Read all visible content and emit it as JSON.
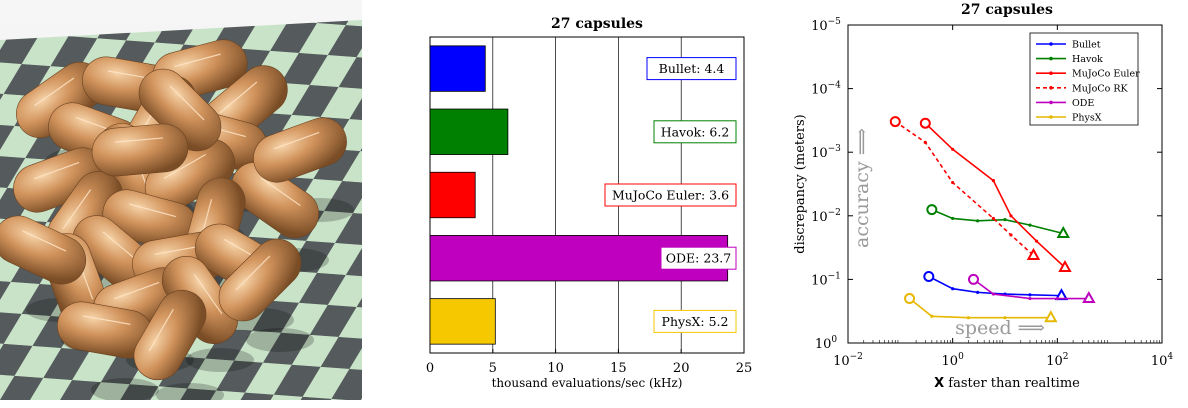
{
  "scene": {
    "name": "27 capsules simulation render"
  },
  "chart_data": [
    {
      "type": "bar",
      "orientation": "horizontal",
      "title": "27 capsules",
      "xlabel": "thousand evaluations/sec (kHz)",
      "ylabel": "",
      "xlim": [
        0,
        25
      ],
      "xticks": [
        "0",
        "5",
        "10",
        "15",
        "20",
        "25"
      ],
      "grid": "vertical",
      "bars": [
        {
          "name": "Bullet",
          "value": 4.4,
          "label": "Bullet: 4.4",
          "color": "#0000ff"
        },
        {
          "name": "Havok",
          "value": 6.2,
          "label": "Havok: 6.2",
          "color": "#008000"
        },
        {
          "name": "MuJoCo Euler",
          "value": 3.6,
          "label": "MuJoCo Euler: 3.6",
          "color": "#ff0000"
        },
        {
          "name": "ODE",
          "value": 23.7,
          "label": "ODE: 23.7",
          "color": "#bf00bf"
        },
        {
          "name": "PhysX",
          "value": 5.2,
          "label": "PhysX: 5.2",
          "color": "#f5c800"
        }
      ]
    },
    {
      "type": "line",
      "title": "27 capsules",
      "xlabel_prefix": "X",
      "xlabel_rest": " faster than realtime",
      "ylabel": "discrepancy (meters)",
      "xscale": "log",
      "yscale": "log",
      "xlim": [
        0.01,
        10000
      ],
      "ylim": [
        1,
        1e-05
      ],
      "yaxis_reversed": true,
      "xticks": [
        {
          "value": 0.01,
          "base": "10",
          "exp": "−2"
        },
        {
          "value": 1,
          "base": "10",
          "exp": "0"
        },
        {
          "value": 100,
          "base": "10",
          "exp": "2"
        },
        {
          "value": 10000,
          "base": "10",
          "exp": "4"
        }
      ],
      "yticks": [
        {
          "value": 1e-05,
          "base": "10",
          "exp": "−5"
        },
        {
          "value": 0.0001,
          "base": "10",
          "exp": "−4"
        },
        {
          "value": 0.001,
          "base": "10",
          "exp": "−3"
        },
        {
          "value": 0.01,
          "base": "10",
          "exp": "−2"
        },
        {
          "value": 0.1,
          "base": "10",
          "exp": "−1"
        },
        {
          "value": 1,
          "base": "10",
          "exp": "0"
        }
      ],
      "annotations": {
        "accuracy": "accuracy ⟹",
        "speed": "speed ⟹"
      },
      "legend_position": "top-right",
      "series": [
        {
          "name": "Bullet",
          "color": "#0000ff",
          "dash": false,
          "x": [
            0.35,
            1,
            3,
            10,
            30,
            120
          ],
          "y": [
            0.09,
            0.14,
            0.16,
            0.17,
            0.175,
            0.18
          ]
        },
        {
          "name": "Havok",
          "color": "#008000",
          "dash": false,
          "x": [
            0.4,
            1,
            3,
            10,
            30,
            130
          ],
          "y": [
            0.008,
            0.011,
            0.012,
            0.0115,
            0.014,
            0.019
          ]
        },
        {
          "name": "MuJoCo Euler",
          "color": "#ff0000",
          "dash": false,
          "x": [
            0.3,
            1,
            6,
            13,
            40,
            140
          ],
          "y": [
            0.00035,
            0.0009,
            0.0028,
            0.01,
            0.025,
            0.065
          ]
        },
        {
          "name": "MuJoCo RK",
          "color": "#ff0000",
          "dash": true,
          "x": [
            0.08,
            0.3,
            1,
            6,
            13,
            35
          ],
          "y": [
            0.00033,
            0.0007,
            0.003,
            0.011,
            0.02,
            0.042
          ]
        },
        {
          "name": "ODE",
          "color": "#bf00bf",
          "dash": false,
          "x": [
            2.5,
            6,
            30,
            100,
            400
          ],
          "y": [
            0.1,
            0.17,
            0.2,
            0.2,
            0.2
          ]
        },
        {
          "name": "PhysX",
          "color": "#e6b800",
          "dash": false,
          "x": [
            0.15,
            0.4,
            2,
            10,
            75
          ],
          "y": [
            0.2,
            0.38,
            0.4,
            0.4,
            0.4
          ]
        }
      ]
    }
  ]
}
